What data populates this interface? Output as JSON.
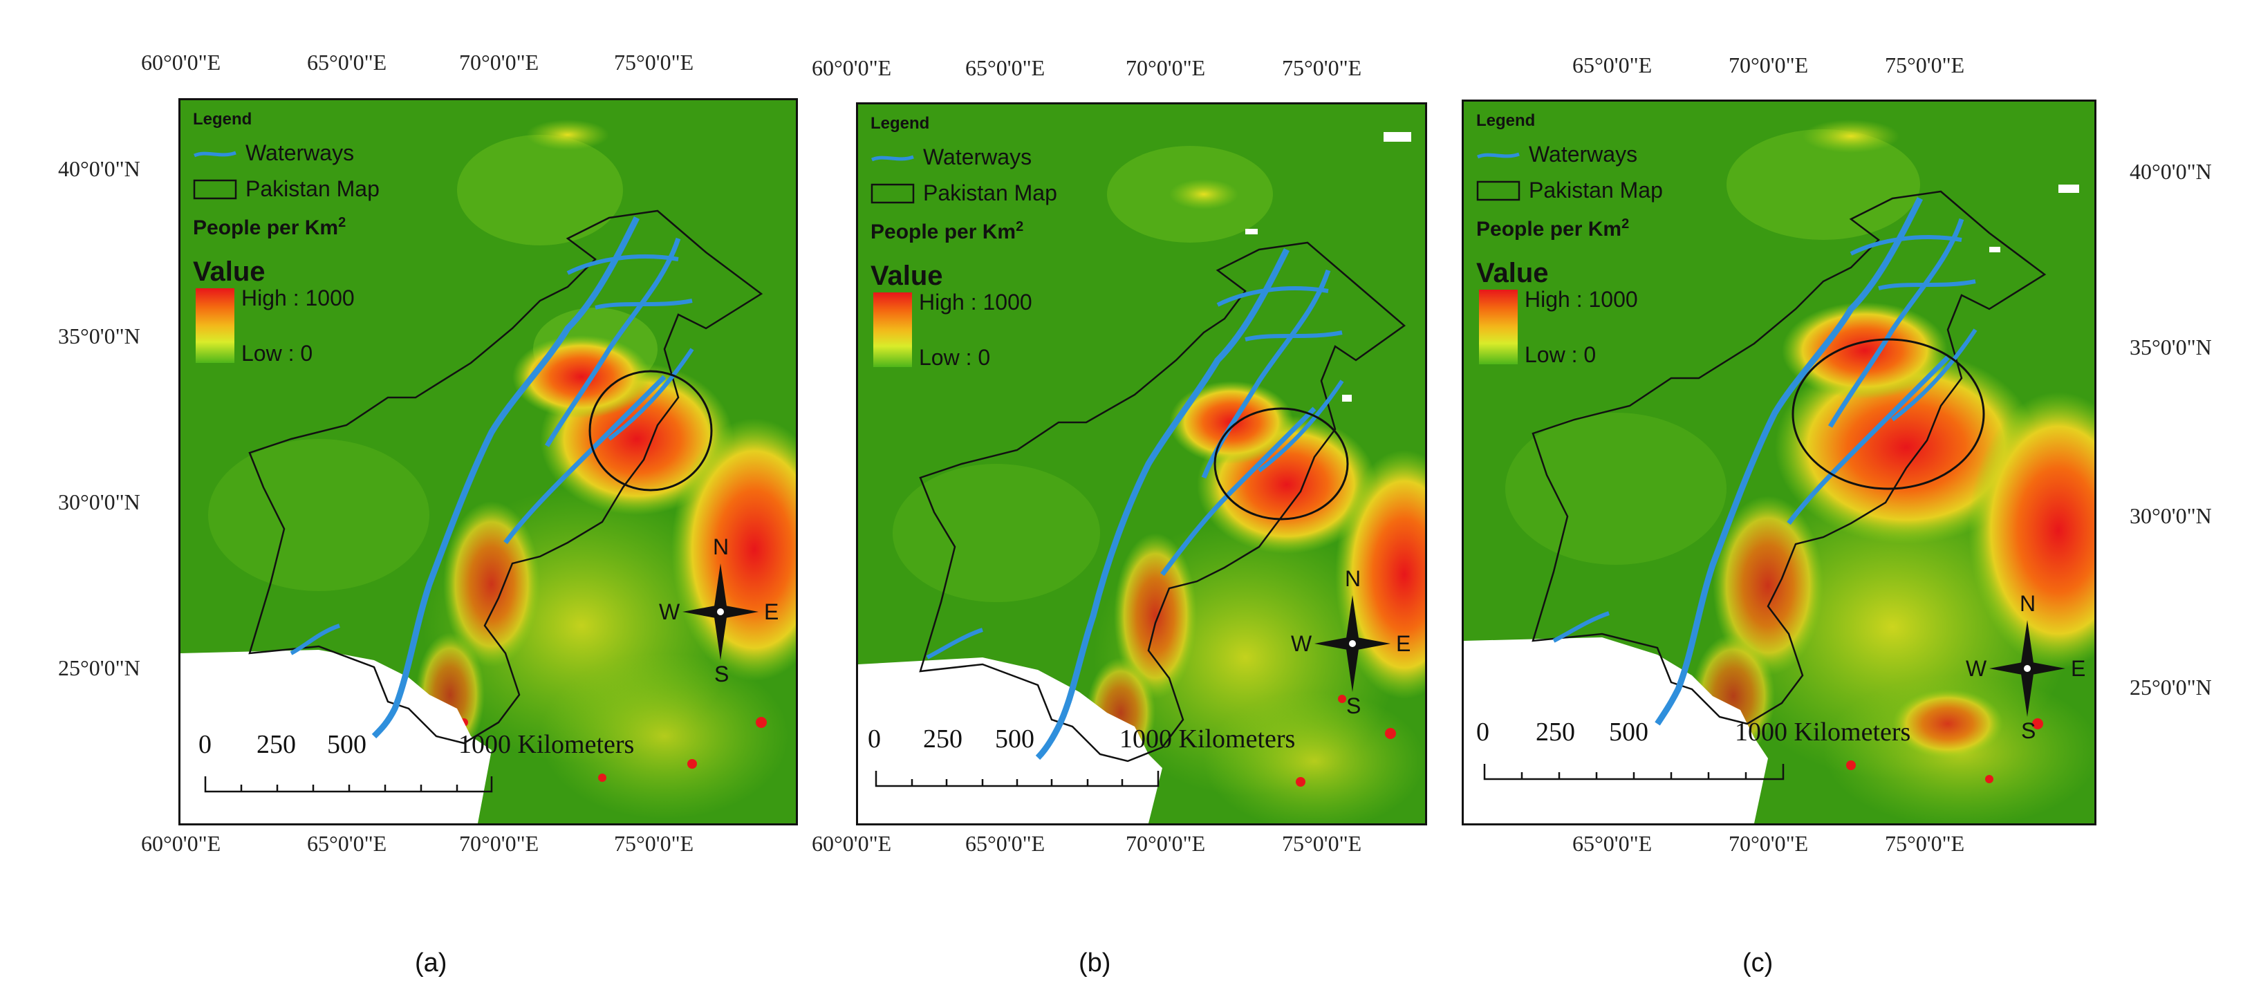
{
  "panels": [
    {
      "id": "a",
      "caption": "(a)",
      "top_lon_labels": [
        "60°0'0\"E",
        "65°0'0\"E",
        "70°0'0\"E",
        "75°0'0\"E"
      ],
      "bottom_lon_labels": [
        "60°0'0\"E",
        "65°0'0\"E",
        "70°0'0\"E",
        "75°0'0\"E"
      ],
      "lat_labels": [
        "40°0'0\"N",
        "35°0'0\"N",
        "30°0'0\"N",
        "25°0'0\"N"
      ],
      "lat_side": "left"
    },
    {
      "id": "b",
      "caption": "(b)",
      "top_lon_labels": [
        "60°0'0\"E",
        "65°0'0\"E",
        "70°0'0\"E",
        "75°0'0\"E"
      ],
      "bottom_lon_labels": [
        "60°0'0\"E",
        "65°0'0\"E",
        "70°0'0\"E",
        "75°0'0\"E"
      ],
      "lat_labels": [],
      "lat_side": "none"
    },
    {
      "id": "c",
      "caption": "(c)",
      "top_lon_labels": [
        "65°0'0\"E",
        "70°0'0\"E",
        "75°0'0\"E"
      ],
      "bottom_lon_labels": [
        "65°0'0\"E",
        "70°0'0\"E",
        "75°0'0\"E"
      ],
      "lat_labels": [
        "40°0'0\"N",
        "35°0'0\"N",
        "30°0'0\"N",
        "25°0'0\"N"
      ],
      "lat_side": "right"
    }
  ],
  "legend": {
    "title": "Legend",
    "waterways": "Waterways",
    "boundary": "Pakistan Map",
    "density_title": "People per Km",
    "density_sup": "2",
    "value_title": "Value",
    "high": "High : 1000",
    "low": "Low : 0"
  },
  "scale_bar": {
    "labels": [
      "0",
      "250",
      "500",
      "1000 Kilometers"
    ]
  },
  "compass": {
    "n": "N",
    "s": "S",
    "e": "E",
    "w": "W"
  },
  "colors": {
    "background_green": "#3a9a12",
    "waterway_blue": "#2f8fdc",
    "high_red": "#e8161a",
    "low_green": "#4fb61a"
  }
}
